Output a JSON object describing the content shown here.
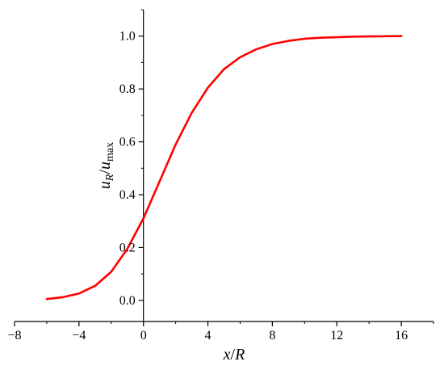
{
  "chart_data": {
    "type": "line",
    "title": "",
    "xlabel": {
      "main": "x",
      "sep": "/",
      "second": "R"
    },
    "ylabel": {
      "num_var": "u",
      "num_sub": "R",
      "sep": "/",
      "den_var": "u",
      "den_sub": "max"
    },
    "xlim": [
      -8,
      18
    ],
    "ylim": [
      -0.08,
      1.1
    ],
    "xticks": [
      -8,
      -4,
      0,
      4,
      8,
      12,
      16
    ],
    "xtick_labels": [
      "−8",
      "−4",
      "0",
      "4",
      "8",
      "12",
      "16"
    ],
    "yticks": [
      0.0,
      0.2,
      0.4,
      0.6,
      0.8,
      1.0
    ],
    "ytick_labels": [
      "0.0",
      "0.2",
      "0.4",
      "0.6",
      "0.8",
      "1.0"
    ],
    "grid": false,
    "legend": false,
    "series": [
      {
        "color": "#ff0000",
        "x": [
          -6,
          -5,
          -4,
          -3,
          -2,
          -1,
          0,
          1,
          2,
          3,
          4,
          5,
          6,
          7,
          8,
          9,
          10,
          11,
          12,
          13,
          14,
          15,
          16
        ],
        "y": [
          0.005,
          0.012,
          0.026,
          0.055,
          0.108,
          0.195,
          0.31,
          0.45,
          0.59,
          0.71,
          0.805,
          0.875,
          0.92,
          0.95,
          0.97,
          0.982,
          0.99,
          0.994,
          0.996,
          0.998,
          0.999,
          0.9995,
          1.0
        ]
      }
    ]
  }
}
